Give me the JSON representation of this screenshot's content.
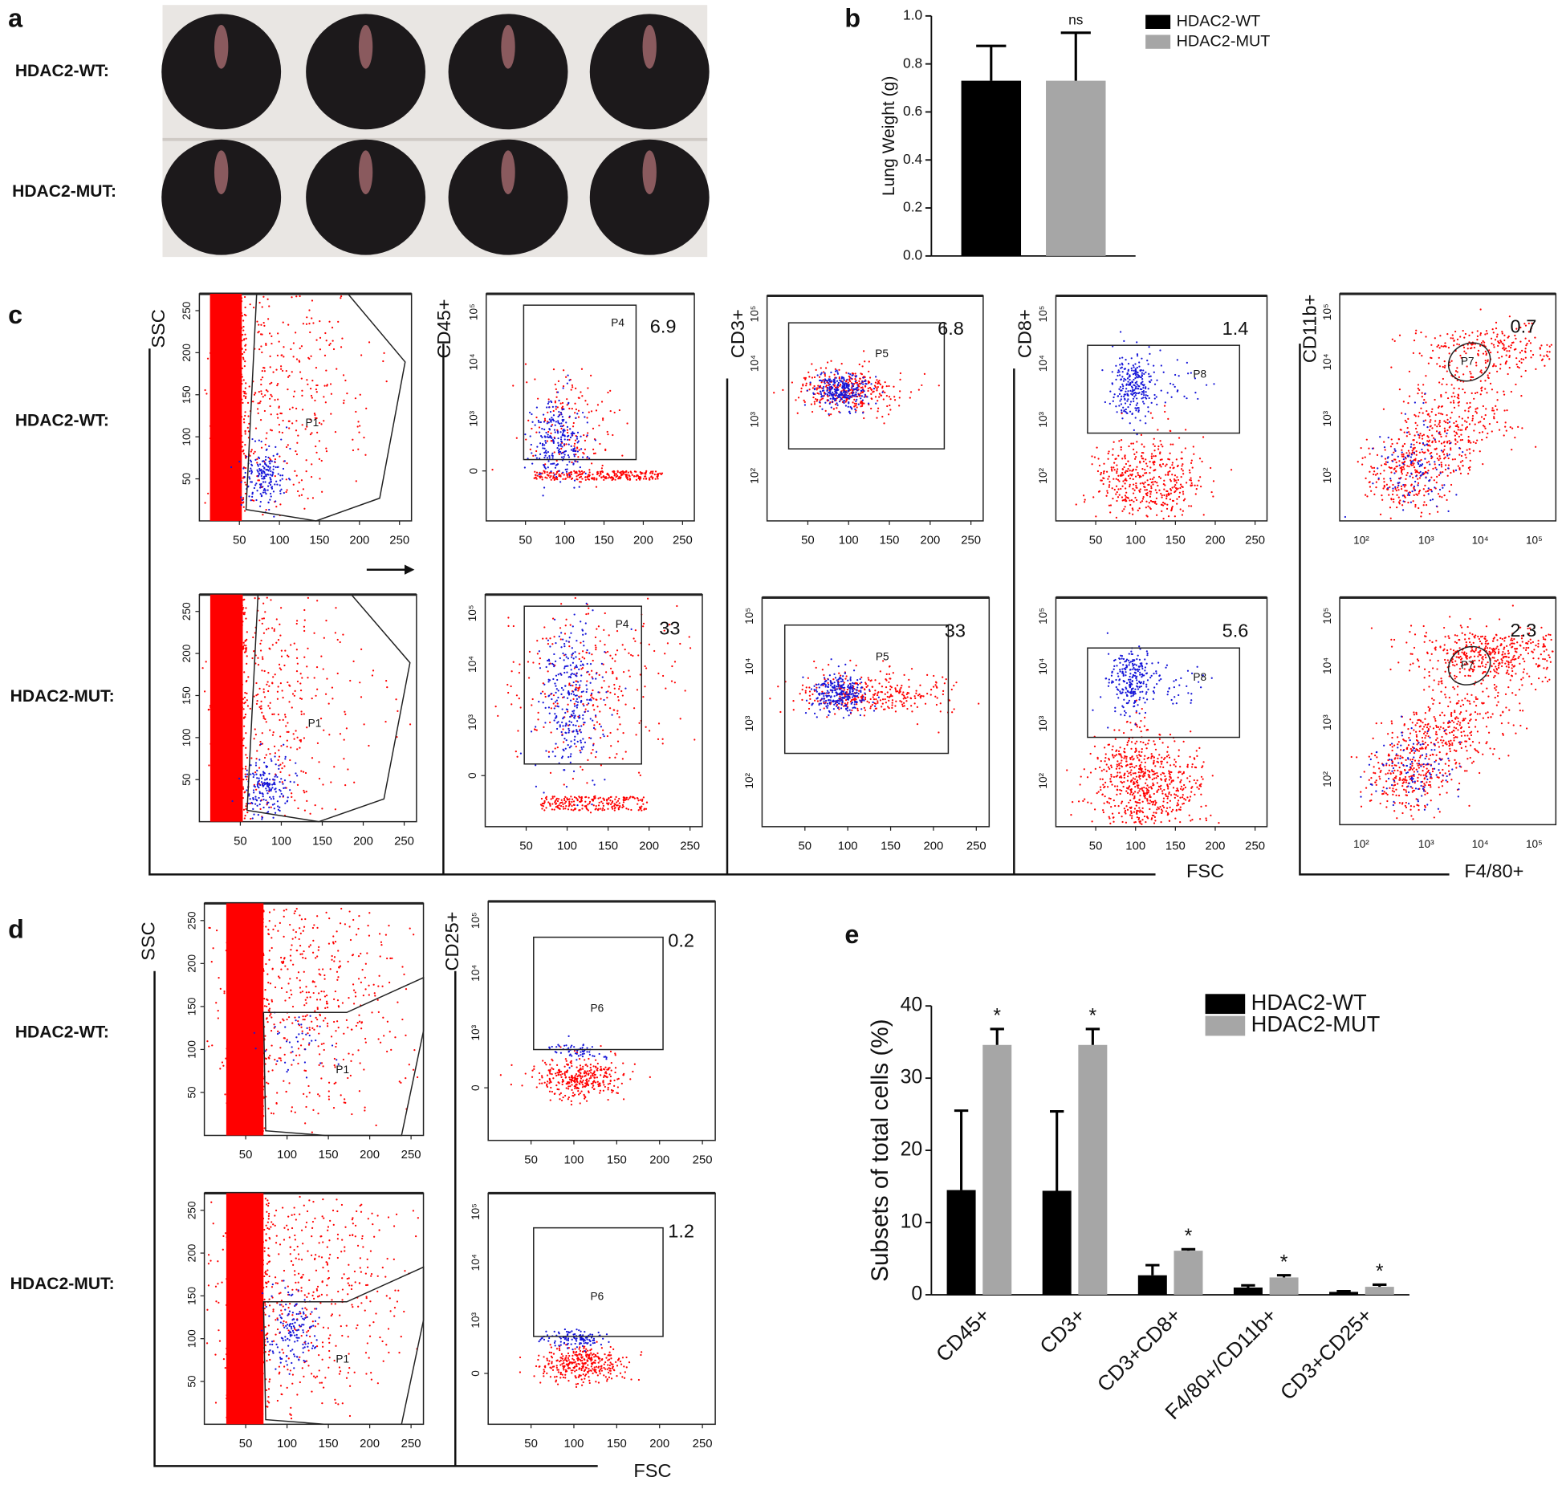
{
  "panel_a": {
    "label": "a",
    "row_labels": [
      "HDAC2-WT:",
      "HDAC2-MUT:"
    ]
  },
  "chart_data": [
    {
      "type": "bar",
      "panel": "b",
      "y_label": "Lung Weight (g)",
      "ylim": [
        0,
        1
      ],
      "yticks": [
        {
          "value": 0,
          "label": "0.0"
        },
        0.2,
        0.4,
        0.6,
        0.8,
        {
          "value": 1,
          "label": "1.0"
        }
      ],
      "categories": [
        null
      ],
      "series": [
        {
          "name": "HDAC2-WT",
          "color": "#000000",
          "values": [
            0.73
          ],
          "errors": [
            0.145
          ]
        },
        {
          "name": "HDAC2-MUT",
          "color": "#a6a6a6",
          "values": [
            0.73
          ],
          "errors": [
            0.2
          ]
        }
      ],
      "significance": [
        "ns"
      ]
    },
    {
      "type": "bar",
      "panel": "e",
      "y_label": "Subsets of total cells (%)",
      "ylim": [
        0,
        40
      ],
      "yticks": [
        0,
        10,
        20,
        30,
        40
      ],
      "categories": [
        "CD45+",
        "CD3+",
        "CD3+CD8+",
        "F4/80+/CD11b+",
        "CD3+CD25+"
      ],
      "series": [
        {
          "name": "HDAC2-WT",
          "color": "#000000",
          "values": [
            14.5,
            14.4,
            2.7,
            1.0,
            0.4
          ],
          "errors": [
            11,
            11,
            1.4,
            0.3,
            0.1
          ]
        },
        {
          "name": "HDAC2-MUT",
          "color": "#a6a6a6",
          "values": [
            34.6,
            34.6,
            6.1,
            2.4,
            1.1
          ],
          "errors": [
            2.2,
            2.2,
            0.2,
            0.3,
            0.3
          ]
        }
      ],
      "significance": [
        "*",
        "*",
        "*",
        "*",
        "*"
      ]
    }
  ],
  "panel_c": {
    "label": "c",
    "row_labels": [
      "HDAC2-WT:",
      "HDAC2-MUT:"
    ],
    "x_labels": [
      "FSC",
      "F4/80+"
    ],
    "columns": [
      {
        "y_label": "SSC",
        "gate": "P1"
      },
      {
        "y_label": "CD45+",
        "gate": "P4",
        "percentages": [
          6.9,
          33
        ]
      },
      {
        "y_label": "CD3+",
        "gate": "P5",
        "percentages": [
          6.8,
          33
        ]
      },
      {
        "y_label": "CD8+",
        "gate": "P8",
        "percentages": [
          1.4,
          5.6
        ]
      },
      {
        "y_label": "CD11b+",
        "gate": "P7",
        "percentages": [
          0.7,
          2.3
        ]
      }
    ]
  },
  "panel_d": {
    "label": "d",
    "row_labels": [
      "HDAC2-WT:",
      "HDAC2-MUT:"
    ],
    "x_label": "FSC",
    "columns": [
      {
        "y_label": "SSC",
        "gate": "P1"
      },
      {
        "y_label": "CD25+",
        "gate": "P6",
        "percentages": [
          0.2,
          1.2
        ]
      }
    ]
  },
  "flow_ticks": {
    "linear": [
      50,
      100,
      150,
      200,
      250
    ],
    "log": [
      "10²",
      "10³",
      "10⁴",
      "10⁵"
    ],
    "zero": 0
  }
}
